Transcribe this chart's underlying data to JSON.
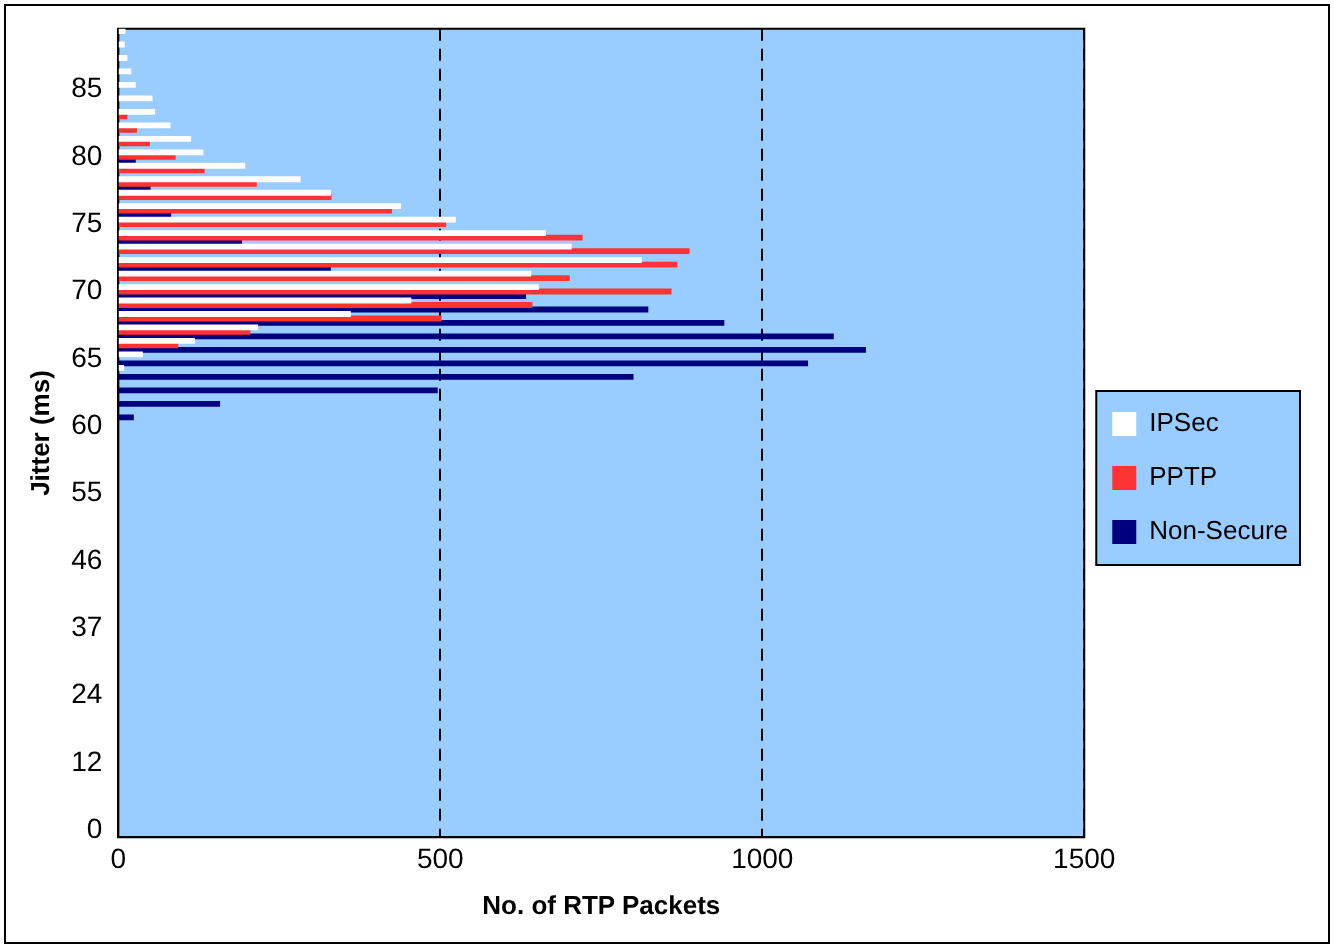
{
  "chart_data": {
    "type": "bar",
    "orientation": "horizontal",
    "xlabel": "No. of RTP Packets",
    "ylabel": "Jitter (ms)",
    "categories": [
      null,
      null,
      null,
      null,
      "85",
      null,
      null,
      null,
      null,
      "80",
      null,
      null,
      null,
      null,
      "75",
      null,
      null,
      null,
      null,
      "70",
      null,
      null,
      null,
      null,
      "65",
      null,
      null,
      null,
      null,
      "60",
      null,
      null,
      null,
      null,
      "55",
      null,
      null,
      null,
      null,
      "46",
      null,
      null,
      null,
      null,
      "37",
      null,
      null,
      null,
      null,
      "24",
      null,
      null,
      null,
      null,
      "12",
      null,
      null,
      null,
      null,
      "0"
    ],
    "series": [
      {
        "name": "IPSec",
        "color": "#ffffff",
        "values": [
          10,
          9,
          13,
          19,
          26,
          52,
          56,
          80,
          112,
          131,
          196,
          282,
          329,
          438,
          523,
          663,
          703,
          812,
          640,
          652,
          454,
          360,
          216,
          118,
          37,
          8,
          null,
          null,
          null,
          null,
          null,
          null,
          null,
          null,
          null,
          null,
          null,
          null,
          null,
          null,
          null,
          null,
          null,
          null,
          null,
          null,
          null,
          null,
          null,
          null,
          null,
          null,
          null,
          null,
          null,
          null,
          null,
          null,
          null,
          null
        ]
      },
      {
        "name": "PPTP",
        "color": "#ff3333",
        "values": [
          null,
          null,
          null,
          null,
          null,
          null,
          13,
          28,
          48,
          88,
          133,
          214,
          330,
          424,
          508,
          720,
          886,
          867,
          700,
          858,
          642,
          501,
          204,
          92,
          null,
          null,
          null,
          null,
          null,
          null,
          null,
          null,
          null,
          null,
          null,
          null,
          null,
          null,
          null,
          null,
          null,
          null,
          null,
          null,
          null,
          null,
          null,
          null,
          null,
          null,
          null,
          null,
          null,
          null,
          null,
          null,
          null,
          null,
          null,
          null
        ]
      },
      {
        "name": "Non-Secure",
        "color": "#000080",
        "values": [
          null,
          null,
          null,
          null,
          null,
          null,
          null,
          null,
          null,
          26,
          null,
          49,
          null,
          81,
          null,
          191,
          null,
          329,
          null,
          632,
          822,
          940,
          1110,
          1160,
          1070,
          799,
          495,
          157,
          23,
          null,
          null,
          null,
          null,
          null,
          null,
          null,
          null,
          null,
          null,
          null,
          null,
          null,
          null,
          null,
          null,
          null,
          null,
          null,
          null,
          null,
          null,
          null,
          null,
          null,
          null,
          null,
          null,
          null,
          null,
          null
        ]
      }
    ],
    "xlim": [
      0,
      1500
    ],
    "xticks": [
      0,
      500,
      1000,
      1500
    ],
    "grid": "x",
    "legend": "right"
  }
}
